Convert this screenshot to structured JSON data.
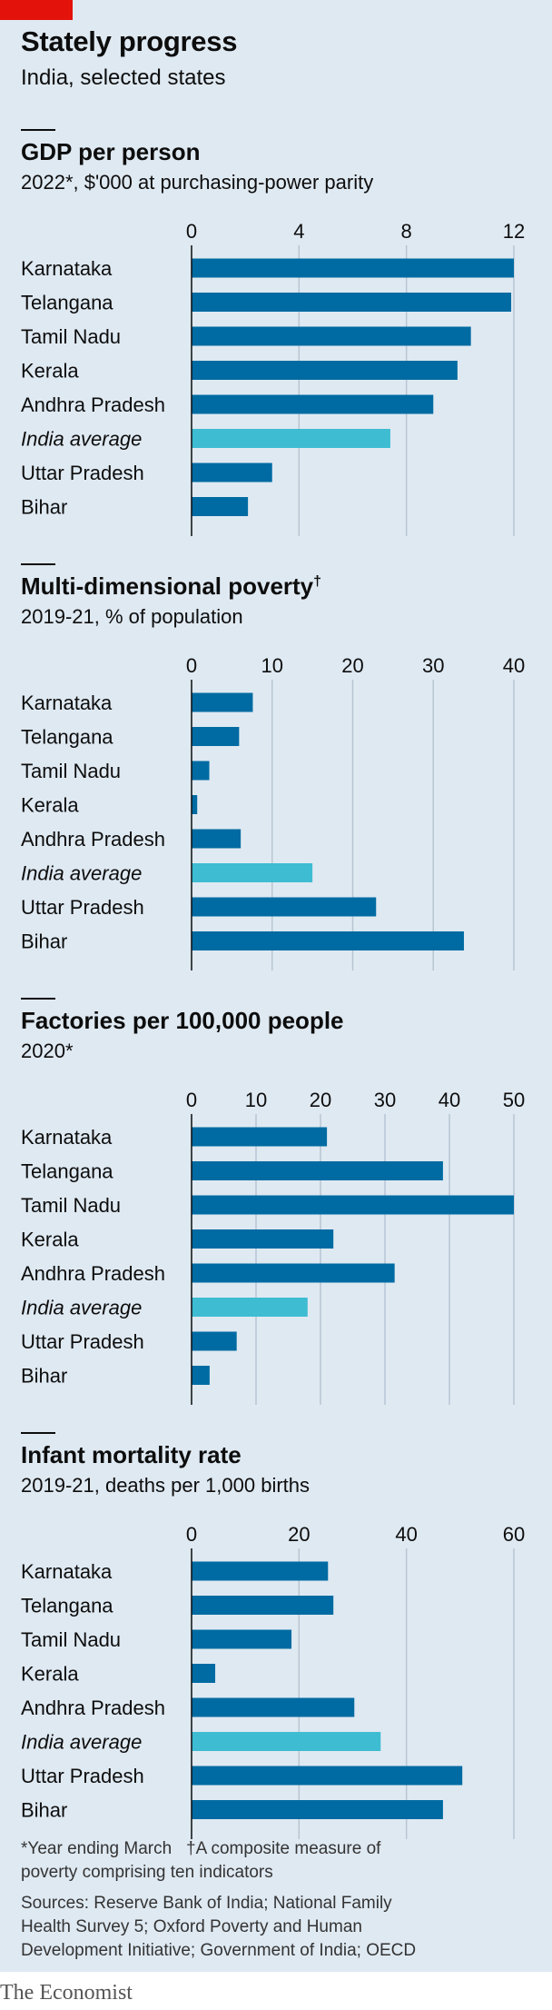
{
  "header": {
    "title": "Stately progress",
    "subtitle": "India, selected states"
  },
  "colors": {
    "bar": "#006ba2",
    "highlight": "#3ebcd2",
    "grid": "#b7c6d3",
    "tag": "#e3120b"
  },
  "chart_data": [
    {
      "type": "bar",
      "title": "GDP per person",
      "subtitle": "2022*, $'000 at purchasing-power parity",
      "categories": [
        "Karnataka",
        "Telangana",
        "Tamil Nadu",
        "Kerala",
        "Andhra Pradesh",
        "India average",
        "Uttar Pradesh",
        "Bihar"
      ],
      "highlight_category": "India average",
      "values": [
        12.0,
        11.9,
        10.4,
        9.9,
        9.0,
        7.4,
        3.0,
        2.1
      ],
      "xlim": [
        0,
        12
      ],
      "ticks": [
        0,
        4,
        8,
        12
      ],
      "tick_labels": [
        "0",
        "4",
        "8",
        "12"
      ],
      "grid": true
    },
    {
      "type": "bar",
      "title": "Multi-dimensional poverty",
      "title_mark": "†",
      "subtitle": "2019-21, % of population",
      "categories": [
        "Karnataka",
        "Telangana",
        "Tamil Nadu",
        "Kerala",
        "Andhra Pradesh",
        "India average",
        "Uttar Pradesh",
        "Bihar"
      ],
      "highlight_category": "India average",
      "values": [
        7.6,
        5.9,
        2.2,
        0.7,
        6.1,
        15.0,
        22.9,
        33.8
      ],
      "xlim": [
        0,
        40
      ],
      "ticks": [
        0,
        10,
        20,
        30,
        40
      ],
      "tick_labels": [
        "0",
        "10",
        "20",
        "30",
        "40"
      ],
      "grid": true
    },
    {
      "type": "bar",
      "title": "Factories per 100,000 people",
      "subtitle": "2020*",
      "categories": [
        "Karnataka",
        "Telangana",
        "Tamil Nadu",
        "Kerala",
        "Andhra Pradesh",
        "India average",
        "Uttar Pradesh",
        "Bihar"
      ],
      "highlight_category": "India average",
      "values": [
        21,
        39,
        50,
        22,
        31.5,
        18,
        7,
        2.8
      ],
      "xlim": [
        0,
        50
      ],
      "ticks": [
        0,
        10,
        20,
        30,
        40,
        50
      ],
      "tick_labels": [
        "0",
        "10",
        "20",
        "30",
        "40",
        "50"
      ],
      "grid": true
    },
    {
      "type": "bar",
      "title": "Infant mortality rate",
      "subtitle": "2019-21, deaths per 1,000 births",
      "categories": [
        "Karnataka",
        "Telangana",
        "Tamil Nadu",
        "Kerala",
        "Andhra Pradesh",
        "India average",
        "Uttar Pradesh",
        "Bihar"
      ],
      "highlight_category": "India average",
      "values": [
        25.4,
        26.4,
        18.6,
        4.4,
        30.3,
        35.2,
        50.4,
        46.8
      ],
      "xlim": [
        0,
        60
      ],
      "ticks": [
        0,
        20,
        40,
        60
      ],
      "tick_labels": [
        "0",
        "20",
        "40",
        "60"
      ],
      "grid": true
    }
  ],
  "footnotes": {
    "line1": "*Year ending March   †A composite measure of",
    "line2": "poverty comprising ten indicators"
  },
  "sources": {
    "line1": "Sources: Reserve Bank of India; National Family",
    "line2": "Health Survey 5; Oxford Poverty and Human",
    "line3": "Development Initiative; Government of India; OECD"
  },
  "brand": "The Economist"
}
